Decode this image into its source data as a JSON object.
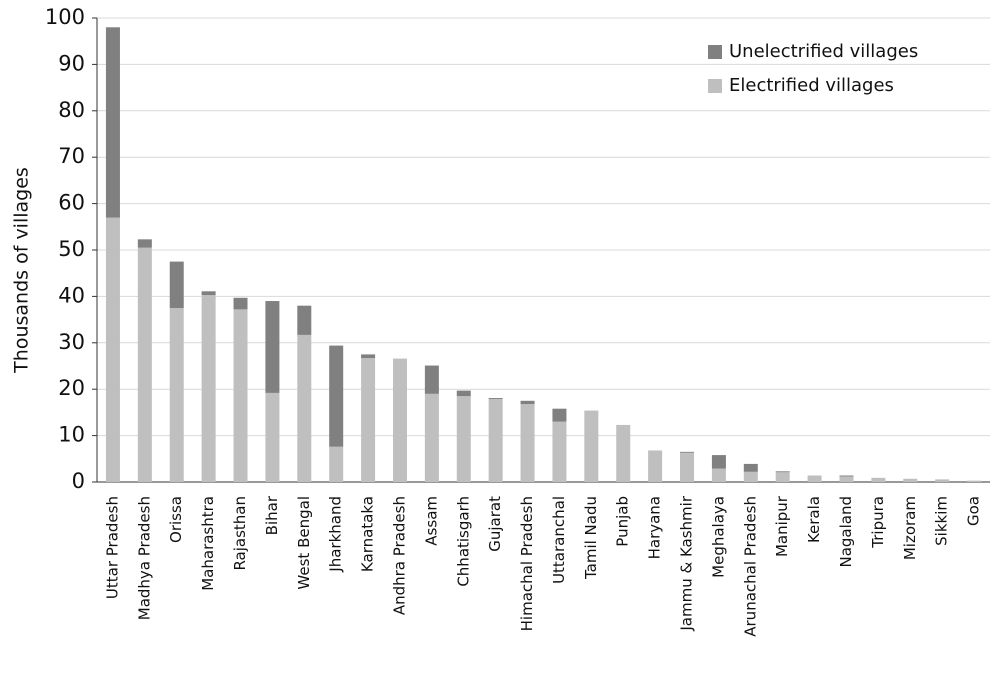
{
  "chart_data": {
    "type": "bar",
    "stacked": true,
    "y_label": "Thousands of villages",
    "categories": [
      "Uttar Pradesh",
      "Madhya Pradesh",
      "Orissa",
      "Maharashtra",
      "Rajasthan",
      "Bihar",
      "West Bengal",
      "Jharkhand",
      "Karnataka",
      "Andhra Pradesh",
      "Assam",
      "Chhatisgarh",
      "Gujarat",
      "Himachal Pradesh",
      "Uttaranchal",
      "Tamil Nadu",
      "Punjab",
      "Haryana",
      "Jammu & Kashmir",
      "Meghalaya",
      "Arunachal Pradesh",
      "Manipur",
      "Kerala",
      "Nagaland",
      "Tripura",
      "Mizoram",
      "Sikkim",
      "Goa"
    ],
    "series": [
      {
        "name": "Electrified villages",
        "color": "#bfbfbf",
        "values": [
          57,
          50.5,
          37.5,
          40.3,
          37.2,
          19.2,
          31.7,
          7.6,
          26.7,
          26.6,
          19,
          18.5,
          17.9,
          16.8,
          13,
          15.4,
          12.3,
          6.8,
          6.3,
          2.9,
          2.2,
          2.1,
          1.4,
          1.2,
          0.9,
          0.7,
          0.4,
          0.3
        ]
      },
      {
        "name": "Unelectrified villages",
        "color": "#808080",
        "values": [
          41,
          1.8,
          10,
          0.8,
          2.5,
          19.8,
          6.3,
          21.8,
          0.8,
          0,
          6.1,
          1.2,
          0.2,
          0.7,
          2.8,
          0,
          0,
          0,
          0.2,
          2.9,
          1.7,
          0.2,
          0,
          0.2,
          0,
          0,
          0.1,
          0
        ]
      }
    ],
    "ylim": [
      0,
      100
    ],
    "yticks": [
      0,
      10,
      20,
      30,
      40,
      50,
      60,
      70,
      80,
      90,
      100
    ],
    "grid": true,
    "legend": "top-right"
  }
}
